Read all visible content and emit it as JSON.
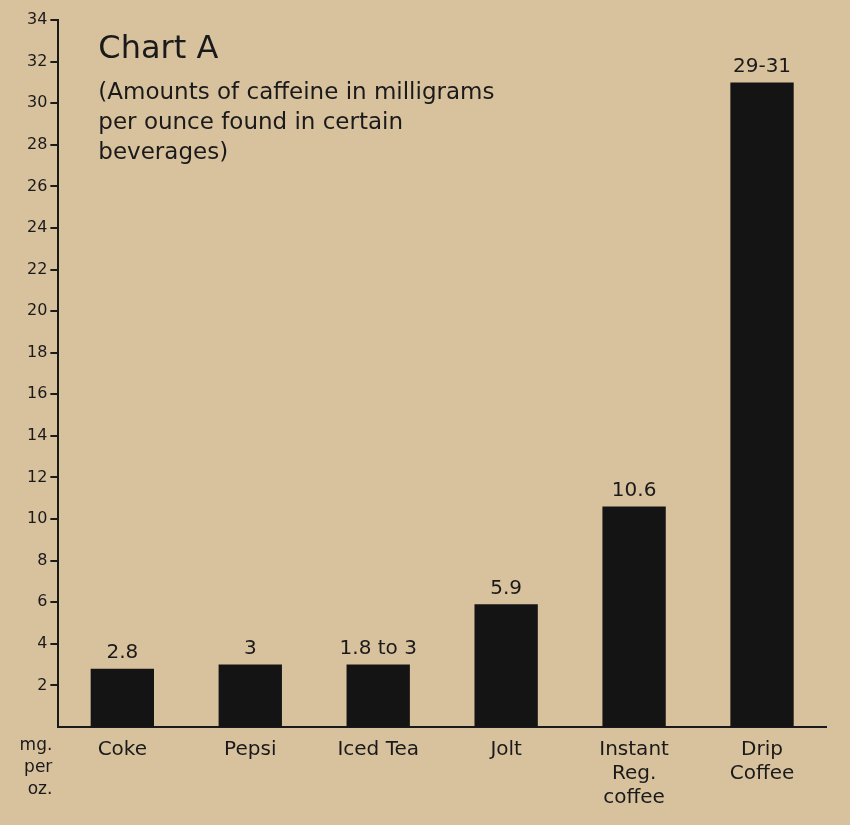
{
  "chart_data": {
    "type": "bar",
    "title": "Chart A",
    "subtitle": "(Amounts of caffeine in milligrams per ounce found in certain beverages)",
    "xlabel": "mg. per oz.",
    "categories": [
      "Coke",
      "Pepsi",
      "Iced Tea",
      "Jolt",
      "Instant Reg. coffee",
      "Drip Coffee"
    ],
    "values": [
      2.8,
      3,
      3,
      5.9,
      10.6,
      31
    ],
    "value_labels": [
      "2.8",
      "3",
      "1.8 to 3",
      "5.9",
      "10.6",
      "29-31"
    ],
    "color": "#141414",
    "ylim": [
      0,
      34
    ],
    "yticks": [
      2,
      4,
      6,
      8,
      10,
      12,
      14,
      16,
      18,
      20,
      22,
      24,
      26,
      28,
      30,
      32,
      34
    ],
    "grid": false,
    "data_labels": true
  }
}
